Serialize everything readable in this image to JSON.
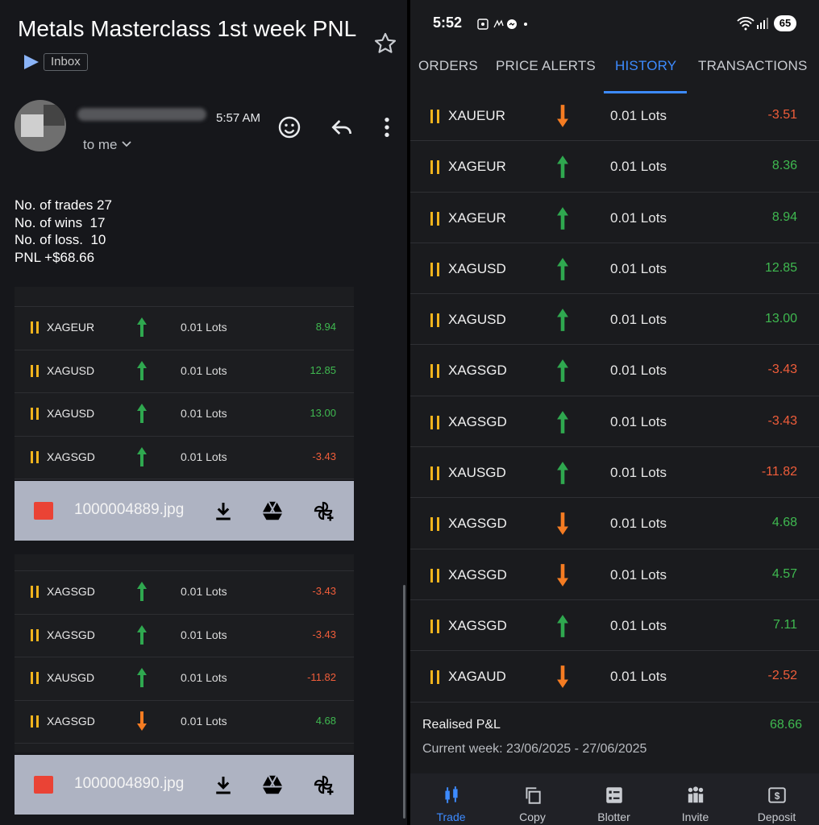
{
  "email": {
    "subject": "Metals Masterclass 1st week PNL",
    "label_chip": "Inbox",
    "time": "5:57 AM",
    "recipient": "to me",
    "body": [
      "No. of trades 27",
      "No. of wins  17",
      "No. of loss.  10",
      "PNL +$68.66"
    ],
    "screenshot_1_rows": [
      {
        "symbol": "XAGEUR",
        "direction": "up",
        "lots": "0.01 Lots",
        "pnl": "8.94",
        "sign": "pos"
      },
      {
        "symbol": "XAGUSD",
        "direction": "up",
        "lots": "0.01 Lots",
        "pnl": "12.85",
        "sign": "pos"
      },
      {
        "symbol": "XAGUSD",
        "direction": "up",
        "lots": "0.01 Lots",
        "pnl": "13.00",
        "sign": "pos"
      },
      {
        "symbol": "XAGSGD",
        "direction": "up",
        "lots": "0.01 Lots",
        "pnl": "-3.43",
        "sign": "neg"
      }
    ],
    "attachment_1": "1000004889.jpg",
    "screenshot_2_rows": [
      {
        "symbol": "XAGSGD",
        "direction": "up",
        "lots": "0.01 Lots",
        "pnl": "-3.43",
        "sign": "neg"
      },
      {
        "symbol": "XAGSGD",
        "direction": "up",
        "lots": "0.01 Lots",
        "pnl": "-3.43",
        "sign": "neg"
      },
      {
        "symbol": "XAUSGD",
        "direction": "up",
        "lots": "0.01 Lots",
        "pnl": "-11.82",
        "sign": "neg"
      },
      {
        "symbol": "XAGSGD",
        "direction": "down",
        "lots": "0.01 Lots",
        "pnl": "4.68",
        "sign": "pos"
      }
    ],
    "attachment_2": "1000004890.jpg"
  },
  "app": {
    "status_time": "5:52",
    "battery": "65",
    "tabs": [
      "ORDERS",
      "PRICE ALERTS",
      "HISTORY",
      "TRANSACTIONS"
    ],
    "active_tab": "HISTORY",
    "history": [
      {
        "symbol": "XAUEUR",
        "direction": "down",
        "lots": "0.01 Lots",
        "pnl": "-3.51",
        "sign": "neg"
      },
      {
        "symbol": "XAGEUR",
        "direction": "up",
        "lots": "0.01 Lots",
        "pnl": "8.36",
        "sign": "pos"
      },
      {
        "symbol": "XAGEUR",
        "direction": "up",
        "lots": "0.01 Lots",
        "pnl": "8.94",
        "sign": "pos"
      },
      {
        "symbol": "XAGUSD",
        "direction": "up",
        "lots": "0.01 Lots",
        "pnl": "12.85",
        "sign": "pos"
      },
      {
        "symbol": "XAGUSD",
        "direction": "up",
        "lots": "0.01 Lots",
        "pnl": "13.00",
        "sign": "pos"
      },
      {
        "symbol": "XAGSGD",
        "direction": "up",
        "lots": "0.01 Lots",
        "pnl": "-3.43",
        "sign": "neg"
      },
      {
        "symbol": "XAGSGD",
        "direction": "up",
        "lots": "0.01 Lots",
        "pnl": "-3.43",
        "sign": "neg"
      },
      {
        "symbol": "XAUSGD",
        "direction": "up",
        "lots": "0.01 Lots",
        "pnl": "-11.82",
        "sign": "neg"
      },
      {
        "symbol": "XAGSGD",
        "direction": "down",
        "lots": "0.01 Lots",
        "pnl": "4.68",
        "sign": "pos"
      },
      {
        "symbol": "XAGSGD",
        "direction": "down",
        "lots": "0.01 Lots",
        "pnl": "4.57",
        "sign": "pos"
      },
      {
        "symbol": "XAGSGD",
        "direction": "up",
        "lots": "0.01 Lots",
        "pnl": "7.11",
        "sign": "pos"
      },
      {
        "symbol": "XAGAUD",
        "direction": "down",
        "lots": "0.01 Lots",
        "pnl": "-2.52",
        "sign": "neg"
      }
    ],
    "realised_label": "Realised P&L",
    "realised_value": "68.66",
    "current_week": "Current week: 23/06/2025 - 27/06/2025",
    "nav": [
      "Trade",
      "Copy",
      "Blotter",
      "Invite",
      "Deposit"
    ],
    "colors": {
      "accent": "#3d8bff",
      "profit": "#3fb950",
      "loss": "#f05d3a",
      "up_arrow": "#2fa84f",
      "down_arrow": "#f57c22",
      "marker": "#f2b41d"
    }
  }
}
